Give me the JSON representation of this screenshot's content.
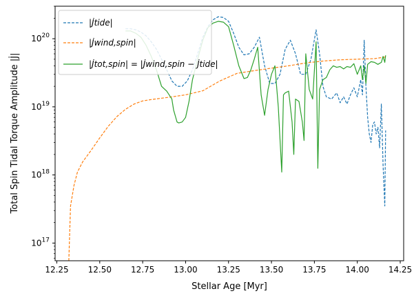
{
  "chart_data": {
    "type": "line",
    "xlabel": "Stellar Age [Myr]",
    "ylabel": "Total Spin Tidal Torque Amplitude |J̇|",
    "yscale": "log",
    "xlim": [
      12.24,
      14.27
    ],
    "ylim": [
      5.5e+16,
      3e+20
    ],
    "xticks": [
      12.25,
      12.5,
      12.75,
      13.0,
      13.25,
      13.5,
      13.75,
      14.0,
      14.25
    ],
    "xtick_labels": [
      "12.25",
      "12.50",
      "12.75",
      "13.00",
      "13.25",
      "13.50",
      "13.75",
      "14.00",
      "14.25"
    ],
    "yticks": [
      1e+17,
      1e+18,
      1e+19,
      1e+20
    ],
    "ytick_labels": [
      "10^17",
      "10^18",
      "10^19",
      "10^20"
    ],
    "grid": false,
    "legend_position": "upper-left",
    "series": [
      {
        "name": "|J̇tide|",
        "color": "#1f77b4",
        "dash": "dashed",
        "x": [
          12.65,
          12.68,
          12.71,
          12.74,
          12.77,
          12.8,
          12.83,
          12.86,
          12.89,
          12.92,
          12.95,
          12.98,
          13.01,
          13.04,
          13.07,
          13.1,
          13.13,
          13.16,
          13.19,
          13.22,
          13.25,
          13.28,
          13.31,
          13.34,
          13.37,
          13.4,
          13.43,
          13.46,
          13.49,
          13.52,
          13.55,
          13.58,
          13.61,
          13.64,
          13.67,
          13.7,
          13.73,
          13.76,
          13.78,
          13.8,
          13.82,
          13.85,
          13.88,
          13.9,
          13.92,
          13.94,
          13.96,
          13.98,
          14.0,
          14.02,
          14.03,
          14.04,
          14.05,
          14.06,
          14.07,
          14.08,
          14.09,
          14.1,
          14.11,
          14.12,
          14.13,
          14.14,
          14.15,
          14.16,
          14.165
        ],
        "y": [
          1.4e+20,
          1.4e+20,
          1.35e+20,
          1.25e+20,
          1.1e+20,
          9e+19,
          7e+19,
          5e+19,
          3.5e+19,
          2.4e+19,
          2e+19,
          2e+19,
          2.4e+19,
          3.5e+19,
          6e+19,
          1.05e+20,
          1.5e+20,
          1.9e+20,
          2.1e+20,
          2.05e+20,
          1.8e+20,
          1.2e+20,
          7.5e+19,
          5.8e+19,
          6e+19,
          7.5e+19,
          1.05e+20,
          4e+19,
          2.2e+19,
          2.2e+19,
          3e+19,
          7e+19,
          9.5e+19,
          6e+19,
          3e+19,
          3e+19,
          5e+19,
          1.35e+20,
          6e+19,
          2e+19,
          1.4e+19,
          1.3e+19,
          1.6e+19,
          1.15e+19,
          1.4e+19,
          1.1e+19,
          1.5e+19,
          1.9e+19,
          1.4e+19,
          2.5e+19,
          1.5e+19,
          9.5e+19,
          2e+19,
          7e+18,
          4e+18,
          3e+18,
          5.5e+18,
          6e+18,
          4e+18,
          5e+18,
          2.5e+18,
          1.1e+19,
          1.4e+18,
          3.5e+17,
          4.5e+18
        ]
      },
      {
        "name": "|J̇wind,spin|",
        "color": "#ff7f0e",
        "dash": "dashed",
        "x": [
          12.32,
          12.33,
          12.35,
          12.37,
          12.4,
          12.45,
          12.5,
          12.55,
          12.6,
          12.65,
          12.7,
          12.75,
          12.8,
          12.9,
          13.0,
          13.1,
          13.2,
          13.3,
          13.4,
          13.5,
          13.6,
          13.7,
          13.8,
          13.9,
          14.0,
          14.1,
          14.165
        ],
        "y": [
          5.5e+16,
          3.5e+17,
          7e+17,
          1.1e+18,
          1.55e+18,
          2.3e+18,
          3.5e+18,
          5.2e+18,
          7.2e+18,
          9.2e+18,
          1.1e+19,
          1.22e+19,
          1.28e+19,
          1.38e+19,
          1.5e+19,
          1.72e+19,
          2.4e+19,
          3.1e+19,
          3.4e+19,
          3.7e+19,
          4e+19,
          4.4e+19,
          4.7e+19,
          4.9e+19,
          5e+19,
          5.1e+19,
          5.4e+19
        ]
      },
      {
        "name": "|J̇tot,spin| = |J̇wind,spin − J̇tide|",
        "color": "#2ca02c",
        "dash": "solid",
        "x": [
          12.65,
          12.68,
          12.71,
          12.74,
          12.77,
          12.8,
          12.83,
          12.86,
          12.89,
          12.92,
          12.93,
          12.95,
          12.96,
          12.98,
          13.0,
          13.02,
          13.04,
          13.07,
          13.1,
          13.13,
          13.16,
          13.19,
          13.22,
          13.25,
          13.28,
          13.31,
          13.34,
          13.36,
          13.38,
          13.4,
          13.42,
          13.44,
          13.46,
          13.48,
          13.5,
          13.52,
          13.54,
          13.56,
          13.57,
          13.58,
          13.6,
          13.62,
          13.63,
          13.64,
          13.66,
          13.68,
          13.69,
          13.7,
          13.72,
          13.74,
          13.76,
          13.77,
          13.78,
          13.8,
          13.82,
          13.84,
          13.86,
          13.88,
          13.9,
          13.92,
          13.94,
          13.96,
          13.98,
          14.0,
          14.02,
          14.03,
          14.04,
          14.05,
          14.06,
          14.08,
          14.1,
          14.12,
          14.14,
          14.15,
          14.16,
          14.165
        ],
        "y": [
          1.3e+20,
          1.3e+20,
          1.2e+20,
          1.05e+20,
          8e+19,
          5.5e+19,
          3.5e+19,
          2e+19,
          1.7e+19,
          1.3e+19,
          9e+18,
          6e+18,
          5.8e+18,
          6e+18,
          7e+18,
          1.2e+19,
          2.5e+19,
          5e+19,
          9.5e+19,
          1.45e+20,
          1.7e+20,
          1.8e+20,
          1.75e+20,
          1.5e+20,
          8e+19,
          4e+19,
          2.6e+19,
          2.7e+19,
          3.5e+19,
          5e+19,
          7.5e+19,
          1.5e+19,
          7.5e+18,
          1.8e+19,
          3e+19,
          4e+19,
          1e+19,
          1.1e+18,
          1.5e+19,
          1.6e+19,
          1.7e+19,
          6e+18,
          2e+18,
          1.3e+19,
          1.2e+19,
          6e+18,
          3.2e+18,
          6e+19,
          1.8e+19,
          1.3e+19,
          9e+19,
          1.25e+18,
          1.8e+19,
          2.5e+19,
          2.7e+19,
          3.5e+19,
          4e+19,
          3.8e+19,
          3.9e+19,
          3.6e+19,
          3.9e+19,
          3.8e+19,
          4.3e+19,
          3e+19,
          4e+19,
          2.5e+19,
          4e+19,
          2.2e+19,
          4.2e+19,
          4.6e+19,
          4.5e+19,
          4.2e+19,
          4.5e+19,
          5.5e+19,
          4.5e+19,
          5.7e+19
        ]
      }
    ]
  }
}
